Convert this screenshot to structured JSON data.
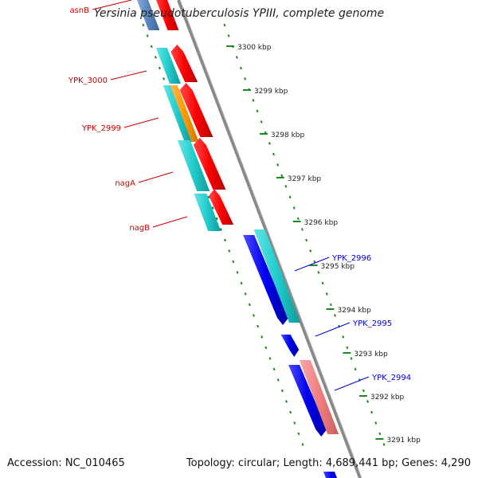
{
  "header": {
    "title": "Yersinia pseudotuberculosis YPIII, complete genome"
  },
  "footer": {
    "accession": "Accession: NC_010465",
    "summary": "Topology: circular; Length: 4,689,441 bp; Genes: 4,290"
  },
  "genome_map": {
    "ticks": [
      {
        "label": "3300 kbp"
      },
      {
        "label": "3299 kbp"
      },
      {
        "label": "3298 kbp"
      },
      {
        "label": "3297 kbp"
      },
      {
        "label": "3296 kbp"
      },
      {
        "label": "3295 kbp"
      },
      {
        "label": "3294 kbp"
      },
      {
        "label": "3293 kbp"
      },
      {
        "label": "3292 kbp"
      },
      {
        "label": "3291 kbp"
      }
    ],
    "left_gene_labels": [
      {
        "text": "asnB"
      },
      {
        "text": "YPK_3000"
      },
      {
        "text": "YPK_2999"
      },
      {
        "text": "nagA"
      },
      {
        "text": "nagB"
      }
    ],
    "right_gene_labels": [
      {
        "text": "YPK_2996"
      },
      {
        "text": "YPK_2995"
      },
      {
        "text": "YPK_2994"
      }
    ],
    "colors": {
      "backbone": "#888888",
      "dots": "#1c8a1c",
      "cds_reverse": "#ff0000",
      "cds_forward": "#0000ee",
      "cog_cyan": "#22cccc",
      "cog_orange": "#ff9900",
      "cog_pink": "#f08080",
      "label_left": "#cc0000",
      "label_right": "#0000cc"
    }
  }
}
